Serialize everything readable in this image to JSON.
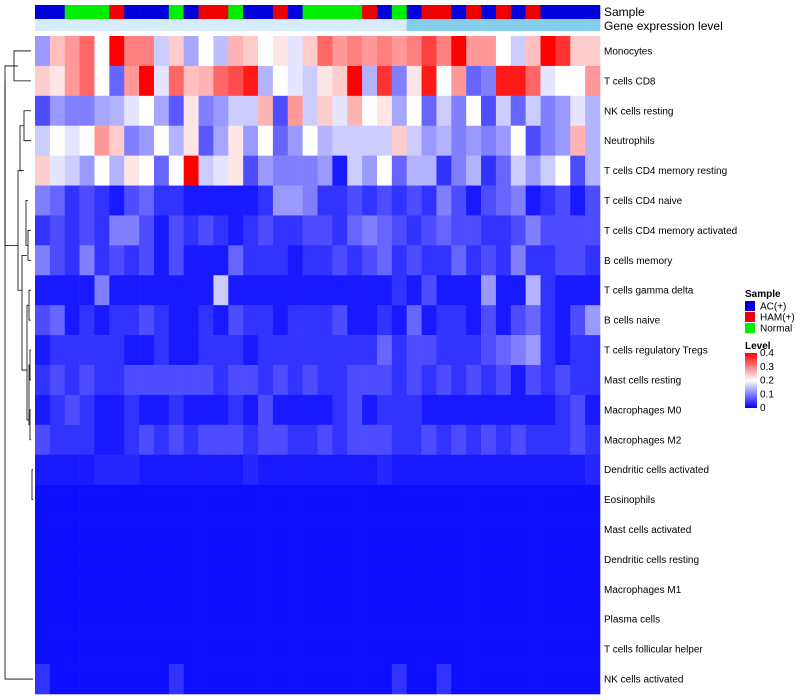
{
  "chart_data": {
    "type": "heatmap",
    "title": "",
    "annotation_rows": [
      "Sample",
      "Gene expression level"
    ],
    "sample_groups": [
      "AC",
      "AC",
      "N",
      "N",
      "N",
      "H",
      "AC",
      "AC",
      "AC",
      "N",
      "AC",
      "H",
      "H",
      "N",
      "AC",
      "AC",
      "H",
      "AC",
      "N",
      "N",
      "N",
      "N",
      "H",
      "AC",
      "N",
      "AC",
      "H",
      "H",
      "AC",
      "H",
      "AC",
      "H",
      "AC",
      "H",
      "AC",
      "AC",
      "AC",
      "AC"
    ],
    "gene_expression_level": [
      "lo",
      "lo",
      "lo",
      "lo",
      "lo",
      "lo",
      "lo",
      "lo",
      "lo",
      "lo",
      "lo",
      "lo",
      "lo",
      "lo",
      "lo",
      "lo",
      "lo",
      "lo",
      "lo",
      "lo",
      "lo",
      "lo",
      "lo",
      "lo",
      "lo",
      "hi",
      "hi",
      "hi",
      "hi",
      "hi",
      "hi",
      "hi",
      "hi",
      "hi",
      "hi",
      "hi",
      "hi",
      "hi"
    ],
    "rows": [
      "Monocytes",
      "T cells CD8",
      "NK cells resting",
      "Neutrophils",
      "T cells CD4 memory resting",
      "T cells CD4 naive",
      "T cells CD4 memory activated",
      "B cells memory",
      "T cells gamma delta",
      "B cells naive",
      "T cells regulatory  Tregs",
      "Mast cells resting",
      "Macrophages M0",
      "Macrophages M2",
      "Dendritic cells activated",
      "Eosinophils",
      "Mast cells activated",
      "Dendritic cells resting",
      "Macrophages M1",
      "Plasma cells",
      "T cells follicular helper",
      "NK cells activated"
    ],
    "values": [
      [
        0.12,
        0.25,
        0.28,
        0.32,
        0.2,
        0.4,
        0.3,
        0.3,
        0.16,
        0.24,
        0.13,
        0.2,
        0.15,
        0.26,
        0.24,
        0.2,
        0.22,
        0.18,
        0.24,
        0.32,
        0.28,
        0.3,
        0.28,
        0.3,
        0.28,
        0.3,
        0.35,
        0.3,
        0.4,
        0.28,
        0.28,
        0.2,
        0.16,
        0.25,
        0.4,
        0.36,
        0.24,
        0.24
      ],
      [
        0.24,
        0.22,
        0.28,
        0.32,
        0.2,
        0.08,
        0.28,
        0.4,
        0.18,
        0.32,
        0.25,
        0.26,
        0.32,
        0.34,
        0.38,
        0.14,
        0.2,
        0.18,
        0.16,
        0.22,
        0.24,
        0.4,
        0.14,
        0.36,
        0.1,
        0.22,
        0.38,
        0.2,
        0.28,
        0.08,
        0.1,
        0.38,
        0.38,
        0.32,
        0.18,
        0.2,
        0.2,
        0.28
      ],
      [
        0.06,
        0.12,
        0.1,
        0.1,
        0.13,
        0.14,
        0.18,
        0.2,
        0.13,
        0.07,
        0.22,
        0.1,
        0.12,
        0.16,
        0.16,
        0.26,
        0.06,
        0.28,
        0.16,
        0.24,
        0.18,
        0.26,
        0.2,
        0.22,
        0.13,
        0.2,
        0.08,
        0.16,
        0.1,
        0.2,
        0.06,
        0.16,
        0.08,
        0.16,
        0.1,
        0.12,
        0.18,
        0.14
      ],
      [
        0.16,
        0.2,
        0.18,
        0.2,
        0.28,
        0.24,
        0.1,
        0.12,
        0.2,
        0.14,
        0.22,
        0.07,
        0.13,
        0.22,
        0.12,
        0.2,
        0.08,
        0.12,
        0.2,
        0.14,
        0.16,
        0.16,
        0.16,
        0.16,
        0.24,
        0.16,
        0.12,
        0.14,
        0.1,
        0.12,
        0.1,
        0.12,
        0.2,
        0.06,
        0.1,
        0.12,
        0.26,
        0.14
      ],
      [
        0.24,
        0.18,
        0.16,
        0.12,
        0.2,
        0.14,
        0.22,
        0.2,
        0.08,
        0.2,
        0.4,
        0.16,
        0.18,
        0.22,
        0.06,
        0.12,
        0.1,
        0.1,
        0.1,
        0.12,
        0.02,
        0.16,
        0.12,
        0.2,
        0.08,
        0.14,
        0.14,
        0.04,
        0.1,
        0.14,
        0.04,
        0.08,
        0.16,
        0.12,
        0.16,
        0.2,
        0.06,
        0.14
      ],
      [
        0.1,
        0.08,
        0.04,
        0.06,
        0.04,
        0.02,
        0.06,
        0.08,
        0.04,
        0.04,
        0.02,
        0.02,
        0.02,
        0.02,
        0.02,
        0.04,
        0.12,
        0.12,
        0.1,
        0.04,
        0.04,
        0.06,
        0.04,
        0.06,
        0.04,
        0.06,
        0.04,
        0.1,
        0.06,
        0.02,
        0.06,
        0.08,
        0.1,
        0.02,
        0.04,
        0.06,
        0.02,
        0.06
      ],
      [
        0.04,
        0.06,
        0.04,
        0.06,
        0.04,
        0.1,
        0.1,
        0.06,
        0.02,
        0.06,
        0.04,
        0.06,
        0.04,
        0.02,
        0.04,
        0.06,
        0.04,
        0.04,
        0.06,
        0.06,
        0.04,
        0.08,
        0.1,
        0.08,
        0.06,
        0.04,
        0.06,
        0.08,
        0.06,
        0.06,
        0.04,
        0.04,
        0.06,
        0.1,
        0.06,
        0.06,
        0.06,
        0.06
      ],
      [
        0.1,
        0.06,
        0.04,
        0.1,
        0.04,
        0.06,
        0.04,
        0.06,
        0.02,
        0.06,
        0.02,
        0.02,
        0.02,
        0.08,
        0.04,
        0.04,
        0.04,
        0.02,
        0.04,
        0.04,
        0.06,
        0.04,
        0.06,
        0.08,
        0.04,
        0.06,
        0.04,
        0.04,
        0.08,
        0.04,
        0.06,
        0.04,
        0.1,
        0.04,
        0.04,
        0.06,
        0.06,
        0.04
      ],
      [
        0.02,
        0.02,
        0.02,
        0.02,
        0.1,
        0.02,
        0.02,
        0.02,
        0.02,
        0.02,
        0.02,
        0.02,
        0.16,
        0.02,
        0.02,
        0.02,
        0.02,
        0.02,
        0.02,
        0.02,
        0.02,
        0.02,
        0.02,
        0.02,
        0.04,
        0.02,
        0.06,
        0.02,
        0.02,
        0.02,
        0.12,
        0.02,
        0.02,
        0.14,
        0.04,
        0.02,
        0.02,
        0.02
      ],
      [
        0.06,
        0.08,
        0.02,
        0.04,
        0.02,
        0.04,
        0.04,
        0.06,
        0.04,
        0.02,
        0.02,
        0.04,
        0.02,
        0.06,
        0.04,
        0.04,
        0.02,
        0.04,
        0.04,
        0.04,
        0.06,
        0.02,
        0.02,
        0.04,
        0.02,
        0.08,
        0.02,
        0.04,
        0.04,
        0.02,
        0.06,
        0.02,
        0.06,
        0.08,
        0.04,
        0.02,
        0.06,
        0.12
      ],
      [
        0.02,
        0.04,
        0.04,
        0.04,
        0.04,
        0.04,
        0.02,
        0.02,
        0.04,
        0.02,
        0.02,
        0.04,
        0.04,
        0.04,
        0.02,
        0.04,
        0.04,
        0.04,
        0.04,
        0.04,
        0.04,
        0.04,
        0.04,
        0.08,
        0.04,
        0.06,
        0.06,
        0.04,
        0.04,
        0.04,
        0.06,
        0.08,
        0.1,
        0.12,
        0.04,
        0.02,
        0.04,
        0.04
      ],
      [
        0.04,
        0.06,
        0.04,
        0.06,
        0.04,
        0.04,
        0.06,
        0.06,
        0.06,
        0.06,
        0.06,
        0.06,
        0.04,
        0.06,
        0.06,
        0.04,
        0.06,
        0.04,
        0.06,
        0.04,
        0.04,
        0.06,
        0.06,
        0.06,
        0.04,
        0.06,
        0.04,
        0.06,
        0.04,
        0.06,
        0.04,
        0.06,
        0.02,
        0.06,
        0.04,
        0.06,
        0.04,
        0.04
      ],
      [
        0.02,
        0.04,
        0.06,
        0.04,
        0.02,
        0.02,
        0.04,
        0.02,
        0.02,
        0.04,
        0.02,
        0.02,
        0.02,
        0.04,
        0.02,
        0.06,
        0.02,
        0.02,
        0.02,
        0.02,
        0.04,
        0.06,
        0.02,
        0.04,
        0.04,
        0.04,
        0.02,
        0.02,
        0.02,
        0.02,
        0.02,
        0.02,
        0.02,
        0.02,
        0.02,
        0.04,
        0.06,
        0.02
      ],
      [
        0.06,
        0.04,
        0.04,
        0.04,
        0.02,
        0.02,
        0.04,
        0.06,
        0.04,
        0.06,
        0.04,
        0.06,
        0.06,
        0.06,
        0.04,
        0.06,
        0.06,
        0.04,
        0.04,
        0.06,
        0.04,
        0.06,
        0.06,
        0.06,
        0.04,
        0.04,
        0.06,
        0.04,
        0.06,
        0.04,
        0.06,
        0.04,
        0.06,
        0.04,
        0.04,
        0.04,
        0.06,
        0.04
      ],
      [
        0.02,
        0.02,
        0.02,
        0.02,
        0.03,
        0.03,
        0.03,
        0.02,
        0.02,
        0.02,
        0.02,
        0.02,
        0.02,
        0.02,
        0.03,
        0.02,
        0.02,
        0.02,
        0.02,
        0.02,
        0.02,
        0.02,
        0.02,
        0.03,
        0.02,
        0.02,
        0.02,
        0.02,
        0.02,
        0.02,
        0.02,
        0.02,
        0.02,
        0.02,
        0.02,
        0.02,
        0.02,
        0.03
      ],
      [
        0.01,
        0.01,
        0.01,
        0.01,
        0.01,
        0.01,
        0.01,
        0.01,
        0.01,
        0.01,
        0.01,
        0.01,
        0.01,
        0.01,
        0.01,
        0.01,
        0.01,
        0.01,
        0.01,
        0.01,
        0.01,
        0.01,
        0.01,
        0.01,
        0.01,
        0.01,
        0.01,
        0.01,
        0.01,
        0.01,
        0.01,
        0.01,
        0.01,
        0.01,
        0.01,
        0.01,
        0.01,
        0.01
      ],
      [
        0.01,
        0.01,
        0.01,
        0.01,
        0.01,
        0.01,
        0.01,
        0.01,
        0.01,
        0.01,
        0.01,
        0.01,
        0.01,
        0.01,
        0.01,
        0.01,
        0.01,
        0.01,
        0.01,
        0.01,
        0.01,
        0.01,
        0.01,
        0.01,
        0.01,
        0.01,
        0.01,
        0.01,
        0.01,
        0.01,
        0.01,
        0.01,
        0.01,
        0.01,
        0.01,
        0.01,
        0.01,
        0.01
      ],
      [
        0.01,
        0.01,
        0.01,
        0.01,
        0.01,
        0.01,
        0.01,
        0.01,
        0.01,
        0.01,
        0.01,
        0.01,
        0.01,
        0.01,
        0.01,
        0.01,
        0.01,
        0.01,
        0.01,
        0.01,
        0.01,
        0.01,
        0.01,
        0.01,
        0.01,
        0.01,
        0.01,
        0.01,
        0.01,
        0.01,
        0.01,
        0.01,
        0.01,
        0.01,
        0.01,
        0.01,
        0.01,
        0.01
      ],
      [
        0.01,
        0.01,
        0.01,
        0.01,
        0.01,
        0.01,
        0.01,
        0.01,
        0.01,
        0.01,
        0.01,
        0.01,
        0.01,
        0.01,
        0.01,
        0.01,
        0.01,
        0.01,
        0.01,
        0.01,
        0.01,
        0.01,
        0.01,
        0.01,
        0.01,
        0.01,
        0.01,
        0.01,
        0.01,
        0.01,
        0.01,
        0.01,
        0.01,
        0.01,
        0.01,
        0.01,
        0.01,
        0.01
      ],
      [
        0.01,
        0.01,
        0.01,
        0.01,
        0.01,
        0.01,
        0.01,
        0.01,
        0.01,
        0.01,
        0.01,
        0.01,
        0.01,
        0.01,
        0.01,
        0.01,
        0.01,
        0.01,
        0.01,
        0.01,
        0.01,
        0.01,
        0.01,
        0.01,
        0.01,
        0.01,
        0.01,
        0.01,
        0.01,
        0.01,
        0.01,
        0.01,
        0.01,
        0.01,
        0.01,
        0.01,
        0.01,
        0.01
      ],
      [
        0.01,
        0.01,
        0.01,
        0.01,
        0.01,
        0.01,
        0.01,
        0.01,
        0.01,
        0.01,
        0.01,
        0.01,
        0.01,
        0.01,
        0.01,
        0.01,
        0.01,
        0.01,
        0.01,
        0.01,
        0.01,
        0.01,
        0.01,
        0.01,
        0.01,
        0.01,
        0.01,
        0.01,
        0.01,
        0.01,
        0.01,
        0.01,
        0.01,
        0.01,
        0.01,
        0.01,
        0.01,
        0.01
      ],
      [
        0.04,
        0.01,
        0.01,
        0.01,
        0.01,
        0.01,
        0.01,
        0.01,
        0.01,
        0.04,
        0.01,
        0.01,
        0.01,
        0.01,
        0.01,
        0.01,
        0.01,
        0.01,
        0.01,
        0.01,
        0.01,
        0.01,
        0.01,
        0.01,
        0.04,
        0.01,
        0.01,
        0.04,
        0.01,
        0.01,
        0.01,
        0.01,
        0.01,
        0.01,
        0.01,
        0.01,
        0.01,
        0.01
      ]
    ],
    "color_scale": {
      "min": 0,
      "max": 0.4,
      "low": "#0000ff",
      "mid": "#ffffff",
      "high": "#ff0000",
      "mid_value": 0.2
    },
    "legend_sample": {
      "title": "Sample",
      "items": [
        {
          "key": "AC",
          "label": "AC(+)",
          "color": "#0000dd"
        },
        {
          "key": "H",
          "label": "HAM(+)",
          "color": "#ee0000"
        },
        {
          "key": "N",
          "label": "Normal",
          "color": "#00ee00"
        }
      ]
    },
    "legend_level": {
      "title": "Level",
      "ticks": [
        0.4,
        0.3,
        0.2,
        0.1,
        0
      ],
      "tick_labels": [
        "0.4",
        "0.3",
        "0.2",
        "0.1",
        "0"
      ]
    },
    "gene_expression_colors": {
      "lo": "#d6ecfa",
      "hi": "#87ceeb"
    }
  }
}
